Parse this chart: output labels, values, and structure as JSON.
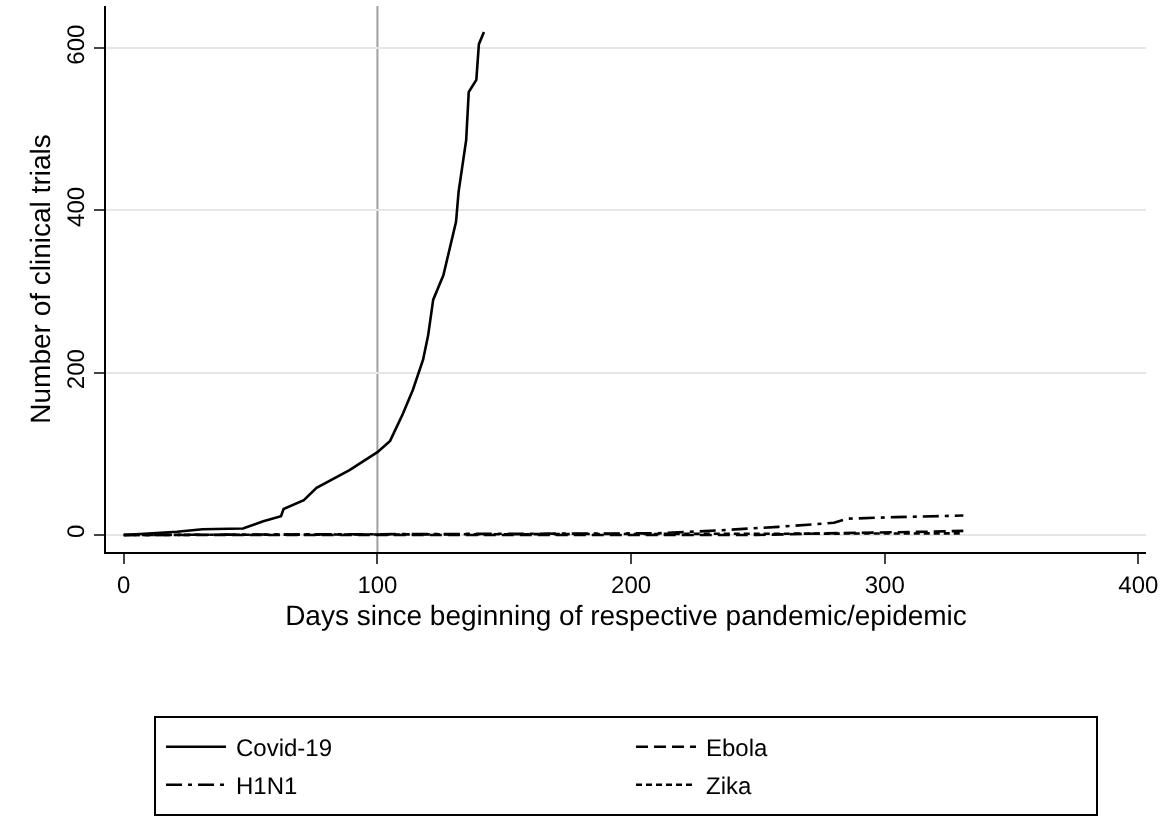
{
  "chart_data": {
    "type": "line",
    "xlabel": "Days since beginning of respective pandemic/epidemic",
    "ylabel": "Number of clinical trials",
    "xlim": [
      -7,
      403
    ],
    "ylim": [
      -21,
      652
    ],
    "xticks": [
      0,
      100,
      200,
      300,
      400
    ],
    "yticks": [
      0,
      200,
      400,
      600
    ],
    "grid": "y",
    "legend": "bottom",
    "marker": "none",
    "ref_lines": [
      {
        "axis": "x",
        "value": 100,
        "color": "#a0a0a0"
      }
    ],
    "series": [
      {
        "name": "Covid-19",
        "color": "#000000",
        "line_style": "solid",
        "x": [
          0,
          21,
          31,
          47,
          55,
          62,
          63,
          71,
          76,
          89,
          100,
          105,
          110,
          114,
          118,
          120,
          122,
          126,
          131,
          132,
          135,
          136,
          139,
          140,
          142
        ],
        "values": [
          0,
          4,
          7,
          8,
          17,
          23,
          32,
          43,
          58,
          80,
          102,
          116,
          149,
          179,
          216,
          246,
          290,
          320,
          386,
          423,
          487,
          546,
          561,
          605,
          620
        ]
      },
      {
        "name": "Ebola",
        "color": "#000000",
        "line_style": "dashed",
        "x": [
          0,
          250,
          277,
          317,
          331
        ],
        "values": [
          0,
          0,
          2,
          4,
          5
        ]
      },
      {
        "name": "H1N1",
        "color": "#000000",
        "line_style": "dashdot",
        "x": [
          0,
          210,
          231,
          258,
          280,
          285,
          304,
          331
        ],
        "values": [
          0,
          2,
          5,
          10,
          15,
          20,
          22,
          24
        ]
      },
      {
        "name": "Zika",
        "color": "#000000",
        "line_style": "dotted",
        "x": [
          0,
          331
        ],
        "values": [
          0,
          2
        ]
      }
    ]
  }
}
